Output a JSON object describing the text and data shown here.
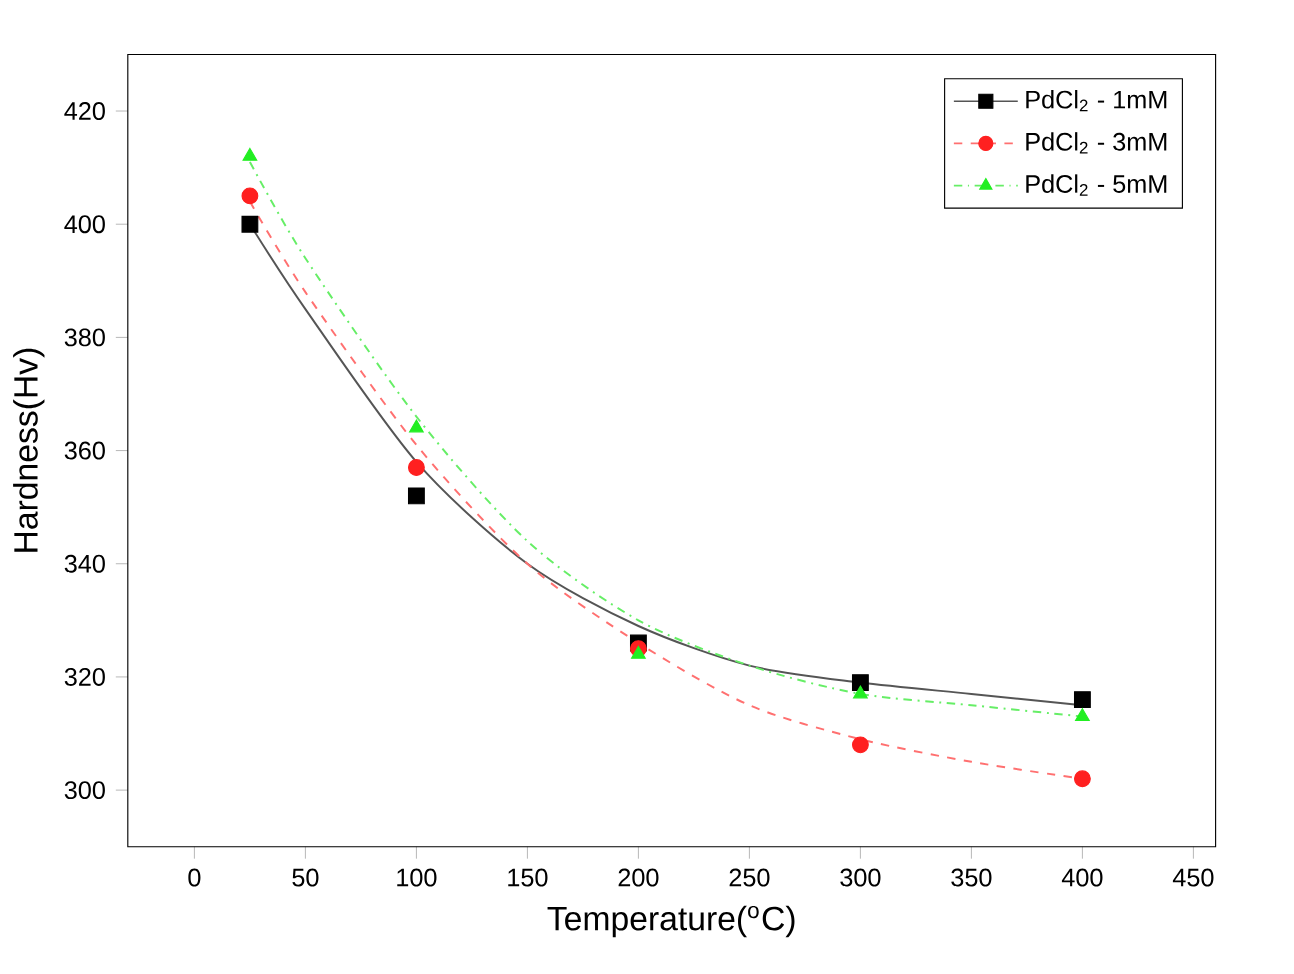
{
  "chart_data": {
    "type": "scatter",
    "xlabel": "Temperature($^{o}$C)",
    "ylabel": "Hardness(Hv)",
    "xlim": [
      -30,
      460
    ],
    "ylim": [
      290,
      430
    ],
    "xticks": [
      0,
      50,
      100,
      150,
      200,
      250,
      300,
      350,
      400,
      450
    ],
    "yticks": [
      300,
      320,
      340,
      360,
      380,
      400,
      420
    ],
    "legend": "top right",
    "grid": false,
    "series": [
      {
        "name": "PdCl$_{2}$ - 1mM",
        "marker": "square",
        "color": "#000000",
        "x": [
          25,
          100,
          200,
          300,
          400
        ],
        "values": [
          400,
          352,
          326,
          319,
          316
        ]
      },
      {
        "name": "PdCl$_{2}$ - 3mM",
        "marker": "circle",
        "color": "#ff2020",
        "x": [
          25,
          100,
          200,
          300,
          400
        ],
        "values": [
          405,
          357,
          325,
          308,
          302
        ]
      },
      {
        "name": "PdCl$_{2}$ - 5mM",
        "marker": "triangle",
        "color": "#22ee22",
        "x": [
          25,
          100,
          200,
          300,
          400
        ],
        "values": [
          412,
          364,
          324,
          317,
          313
        ]
      },
      {
        "type": "line",
        "line_style": "solid",
        "color": "#555555",
        "x": [
          25,
          50,
          100,
          150,
          200,
          250,
          300,
          350,
          400
        ],
        "values": [
          400,
          385,
          358,
          340,
          329,
          322,
          319,
          317,
          315
        ]
      },
      {
        "type": "line",
        "line_style": "dashed",
        "color": "#ff7070",
        "x": [
          25,
          50,
          100,
          150,
          200,
          250,
          300,
          350,
          400
        ],
        "values": [
          404,
          388,
          361,
          340,
          326,
          315,
          309,
          305,
          302
        ]
      },
      {
        "type": "line",
        "line_style": "dotted",
        "color": "#66ee66",
        "x": [
          25,
          50,
          100,
          150,
          200,
          250,
          300,
          350,
          400
        ],
        "values": [
          411,
          394,
          366,
          344,
          330,
          322,
          317,
          315,
          313
        ]
      }
    ]
  }
}
